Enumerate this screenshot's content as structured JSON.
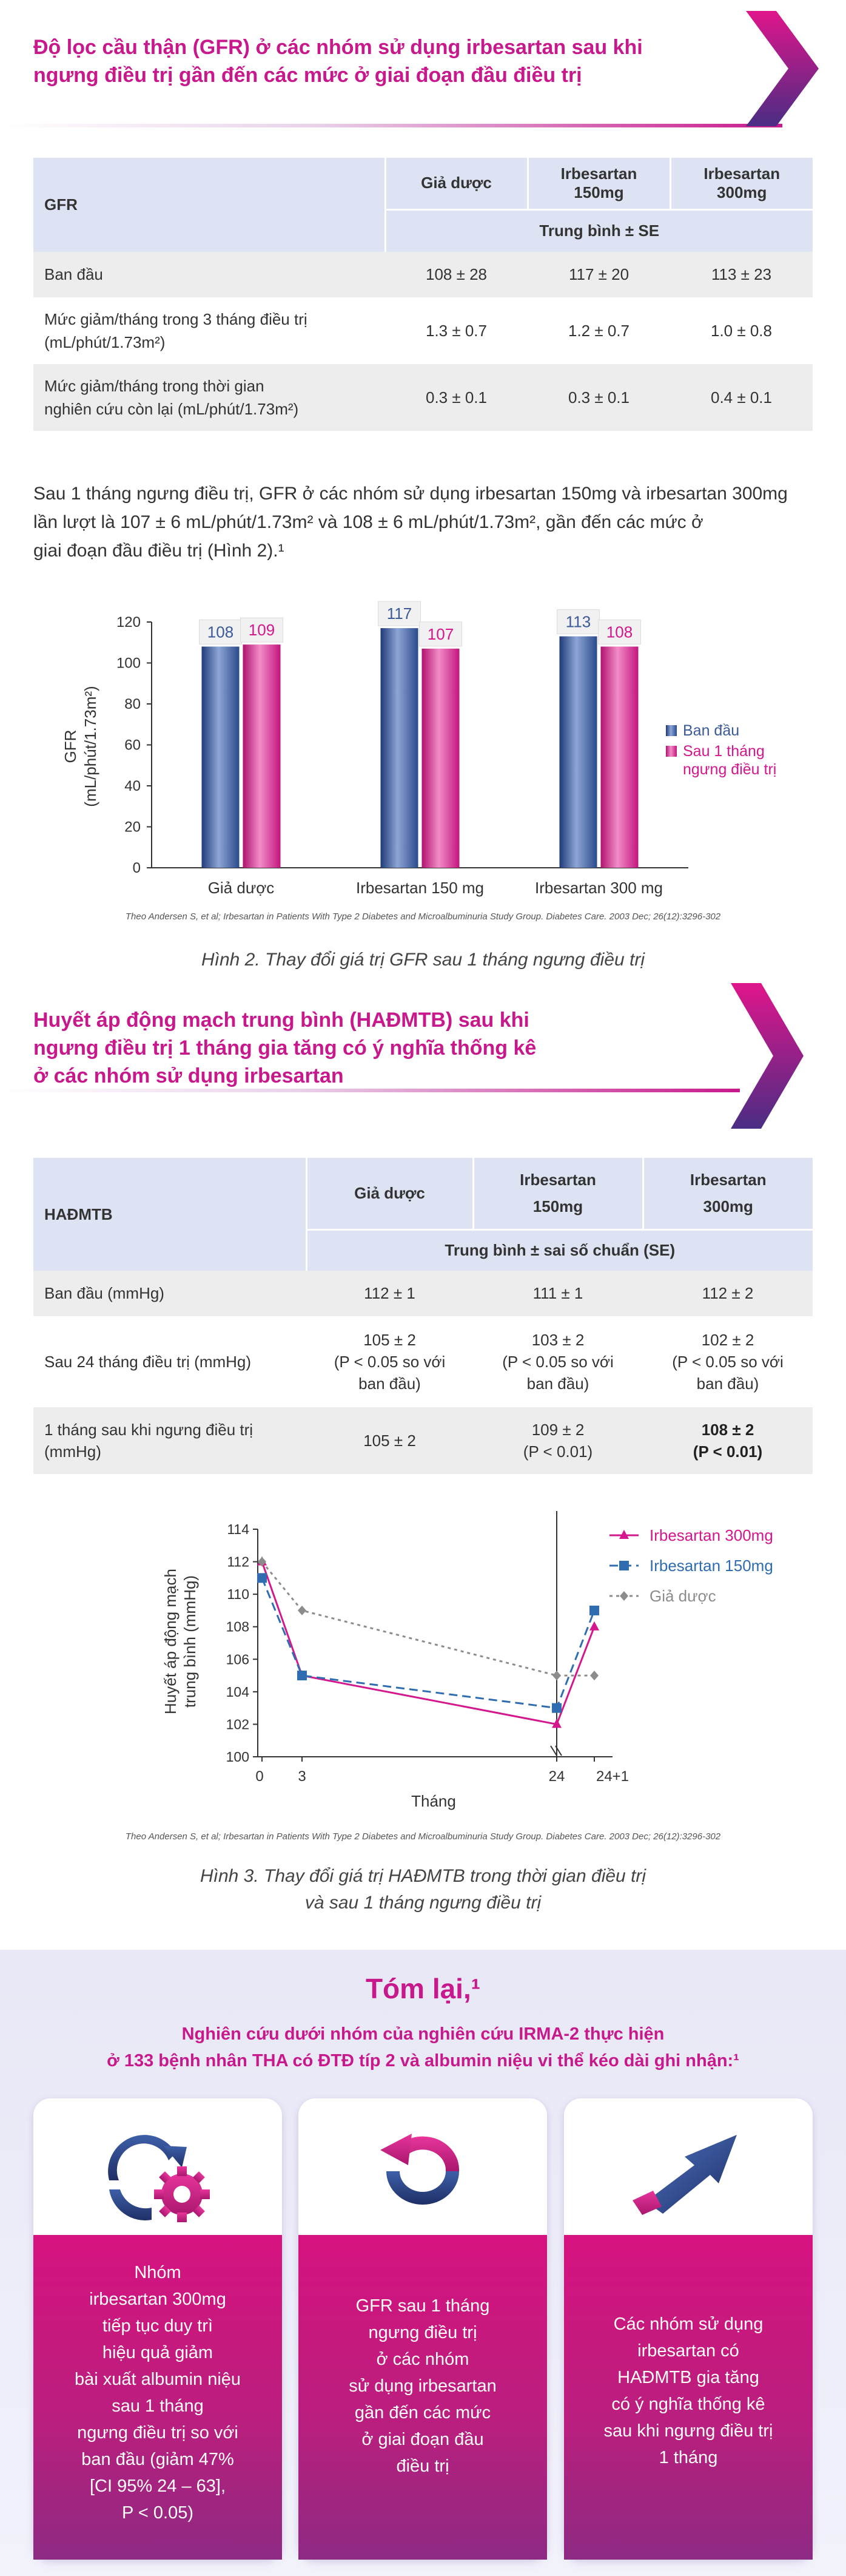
{
  "section1": {
    "title_line1": "Độ lọc cầu thận (GFR) ở các nhóm sử dụng irbesartan sau khi",
    "title_line2": "ngưng điều trị gần đến các mức ở giai đoạn đầu điều trị"
  },
  "table1": {
    "row_header": "GFR",
    "col1": "Giả dược",
    "col2_line1": "Irbesartan",
    "col2_line2": "150mg",
    "col3_line1": "Irbesartan",
    "col3_line2": "300mg",
    "subheader": "Trung bình ± SE",
    "rows": [
      {
        "label_line1": "Ban đầu",
        "label_line2": "",
        "v1": "108 ± 28",
        "v2": "117 ± 20",
        "v3": "113 ± 23"
      },
      {
        "label_line1": "Mức giảm/tháng trong 3 tháng điều trị",
        "label_line2": "(mL/phút/1.73m²)",
        "v1": "1.3 ± 0.7",
        "v2": "1.2 ± 0.7",
        "v3": "1.0 ± 0.8"
      },
      {
        "label_line1": "Mức giảm/tháng trong thời gian",
        "label_line2": "nghiên cứu còn lại (mL/phút/1.73m²)",
        "v1": "0.3 ± 0.1",
        "v2": "0.3 ± 0.1",
        "v3": "0.4 ± 0.1"
      }
    ]
  },
  "paragraph1": {
    "line1": "Sau 1 tháng ngưng điều trị, GFR ở các nhóm sử dụng irbesartan 150mg và irbesartan 300mg",
    "line2": "lần lượt là 107 ± 6 mL/phút/1.73m² và 108 ± 6 mL/phút/1.73m², gần đến các mức ở",
    "line3": "giai đoạn đầu điều trị (Hình 2).¹"
  },
  "chart_data": [
    {
      "type": "bar",
      "categories": [
        "Giả dược",
        "Irbesartan 150 mg",
        "Irbesartan 300 mg"
      ],
      "series": [
        {
          "name": "Ban đầu",
          "values": [
            108,
            117,
            113
          ],
          "color": "#3b5a9a"
        },
        {
          "name": "Sau 1 tháng ngưng điều trị",
          "values": [
            109,
            107,
            108
          ],
          "color": "#d4178c"
        }
      ],
      "ylabel_line1": "GFR",
      "ylabel_line2": "(mL/phút/1.73m²)",
      "ylim": [
        0,
        120
      ],
      "yticks": [
        "0",
        "20",
        "40",
        "60",
        "80",
        "100",
        "120"
      ],
      "legend_position": "right",
      "legend": [
        "Ban đầu",
        "Sau 1 tháng",
        "ngưng điều trị"
      ]
    },
    {
      "type": "line",
      "x_labels": [
        "0",
        "3",
        "24",
        "24+1"
      ],
      "xlabel": "Tháng",
      "ylabel_line1": "Huyết áp động mạch",
      "ylabel_line2": "trung bình (mmHg)",
      "ylim": [
        100,
        114
      ],
      "yticks": [
        "100",
        "102",
        "104",
        "106",
        "108",
        "110",
        "112",
        "114"
      ],
      "legend_position": "top-right",
      "series": [
        {
          "name": "Irbesartan 300mg",
          "x": [
            "0",
            "3",
            "24",
            "24+1"
          ],
          "values": [
            112,
            105,
            102,
            108
          ],
          "color": "#d4178c"
        },
        {
          "name": "Irbesartan 150mg",
          "x": [
            "0",
            "3",
            "24",
            "24+1"
          ],
          "values": [
            111,
            105,
            103,
            109
          ],
          "color": "#2f6db0"
        },
        {
          "name": "Giả dược",
          "x": [
            "0",
            "3",
            "24",
            "24+1"
          ],
          "values": [
            112,
            109,
            105,
            105
          ],
          "color": "#8c8c8c"
        }
      ]
    }
  ],
  "citation1": "Theo Andersen S, et al; Irbesartan in Patients With Type 2 Diabetes and Microalbuminuria Study Group. Diabetes Care. 2003 Dec; 26(12):3296-302",
  "caption1": "Hình 2. Thay đổi giá trị GFR sau 1 tháng ngưng điều trị",
  "section2": {
    "title_line1": "Huyết áp động mạch trung bình (HAĐMTB) sau khi",
    "title_line2": "ngưng điều trị 1 tháng gia tăng có ý nghĩa thống kê",
    "title_line3": "ở các nhóm sử dụng irbesartan"
  },
  "table2": {
    "row_header": "HAĐMTB",
    "col1": "Giả dược",
    "col2_line1": "Irbesartan",
    "col2_line2": "150mg",
    "col3_line1": "Irbesartan",
    "col3_line2": "300mg",
    "subheader": "Trung bình ± sai số chuẩn (SE)",
    "row1": {
      "label": "Ban đầu (mmHg)",
      "v1": "112 ± 1",
      "v2": "111 ± 1",
      "v3": "112 ± 2"
    },
    "row2": {
      "label": "Sau 24 tháng điều trị (mmHg)",
      "v1_line1": "105 ± 2",
      "v1_line2": "(P < 0.05 so với",
      "v1_line3": "ban đầu)",
      "v2_line1": "103 ± 2",
      "v2_line2": "(P < 0.05 so với",
      "v2_line3": "ban đầu)",
      "v3_line1": "102 ± 2",
      "v3_line2": "(P < 0.05 so với",
      "v3_line3": "ban đầu)"
    },
    "row3": {
      "label_line1": "1 tháng sau khi ngưng điều trị",
      "label_line2": "(mmHg)",
      "v1": "105 ± 2",
      "v2_line1": "109 ± 2",
      "v2_line2": "(P < 0.01)",
      "v3_line1": "108 ± 2",
      "v3_line2": "(P < 0.01)"
    }
  },
  "citation2": "Theo Andersen S, et al; Irbesartan in Patients With Type 2 Diabetes and Microalbuminuria Study Group. Diabetes Care. 2003 Dec; 26(12):3296-302",
  "caption2_line1": "Hình 3. Thay đổi giá trị HAĐMTB trong thời gian điều trị",
  "caption2_line2": "và sau 1 tháng ngưng điều trị",
  "summary": {
    "title": "Tóm lại,¹",
    "subtitle_line1": "Nghiên cứu dưới nhóm của nghiên cứu IRMA-2 thực hiện",
    "subtitle_line2": "ở 133 bệnh nhân THA có ĐTĐ típ 2 và albumin niệu vi thể kéo dài ghi nhận:¹",
    "cards": [
      {
        "icon": "gear-cycle-icon",
        "lines": [
          "Nhóm",
          "irbesartan 300mg",
          "tiếp tục duy trì",
          "hiệu quả giảm",
          "bài xuất albumin niệu",
          "sau 1 tháng",
          "ngưng điều trị so với",
          "ban đầu (giảm 47%",
          "[CI 95% 24 – 63],",
          "P < 0.05)"
        ]
      },
      {
        "icon": "circular-arrow-icon",
        "lines": [
          "GFR sau 1 tháng",
          "ngưng điều trị",
          "ở các nhóm",
          "sử dụng irbesartan",
          "gần đến các mức",
          "ở giai đoạn đầu",
          "điều trị"
        ]
      },
      {
        "icon": "up-arrow-icon",
        "lines": [
          "Các nhóm sử dụng",
          "irbesartan có",
          "HAĐMTB gia tăng",
          "có ý nghĩa thống kê",
          "sau khi ngưng điều trị",
          "1 tháng"
        ]
      }
    ]
  }
}
